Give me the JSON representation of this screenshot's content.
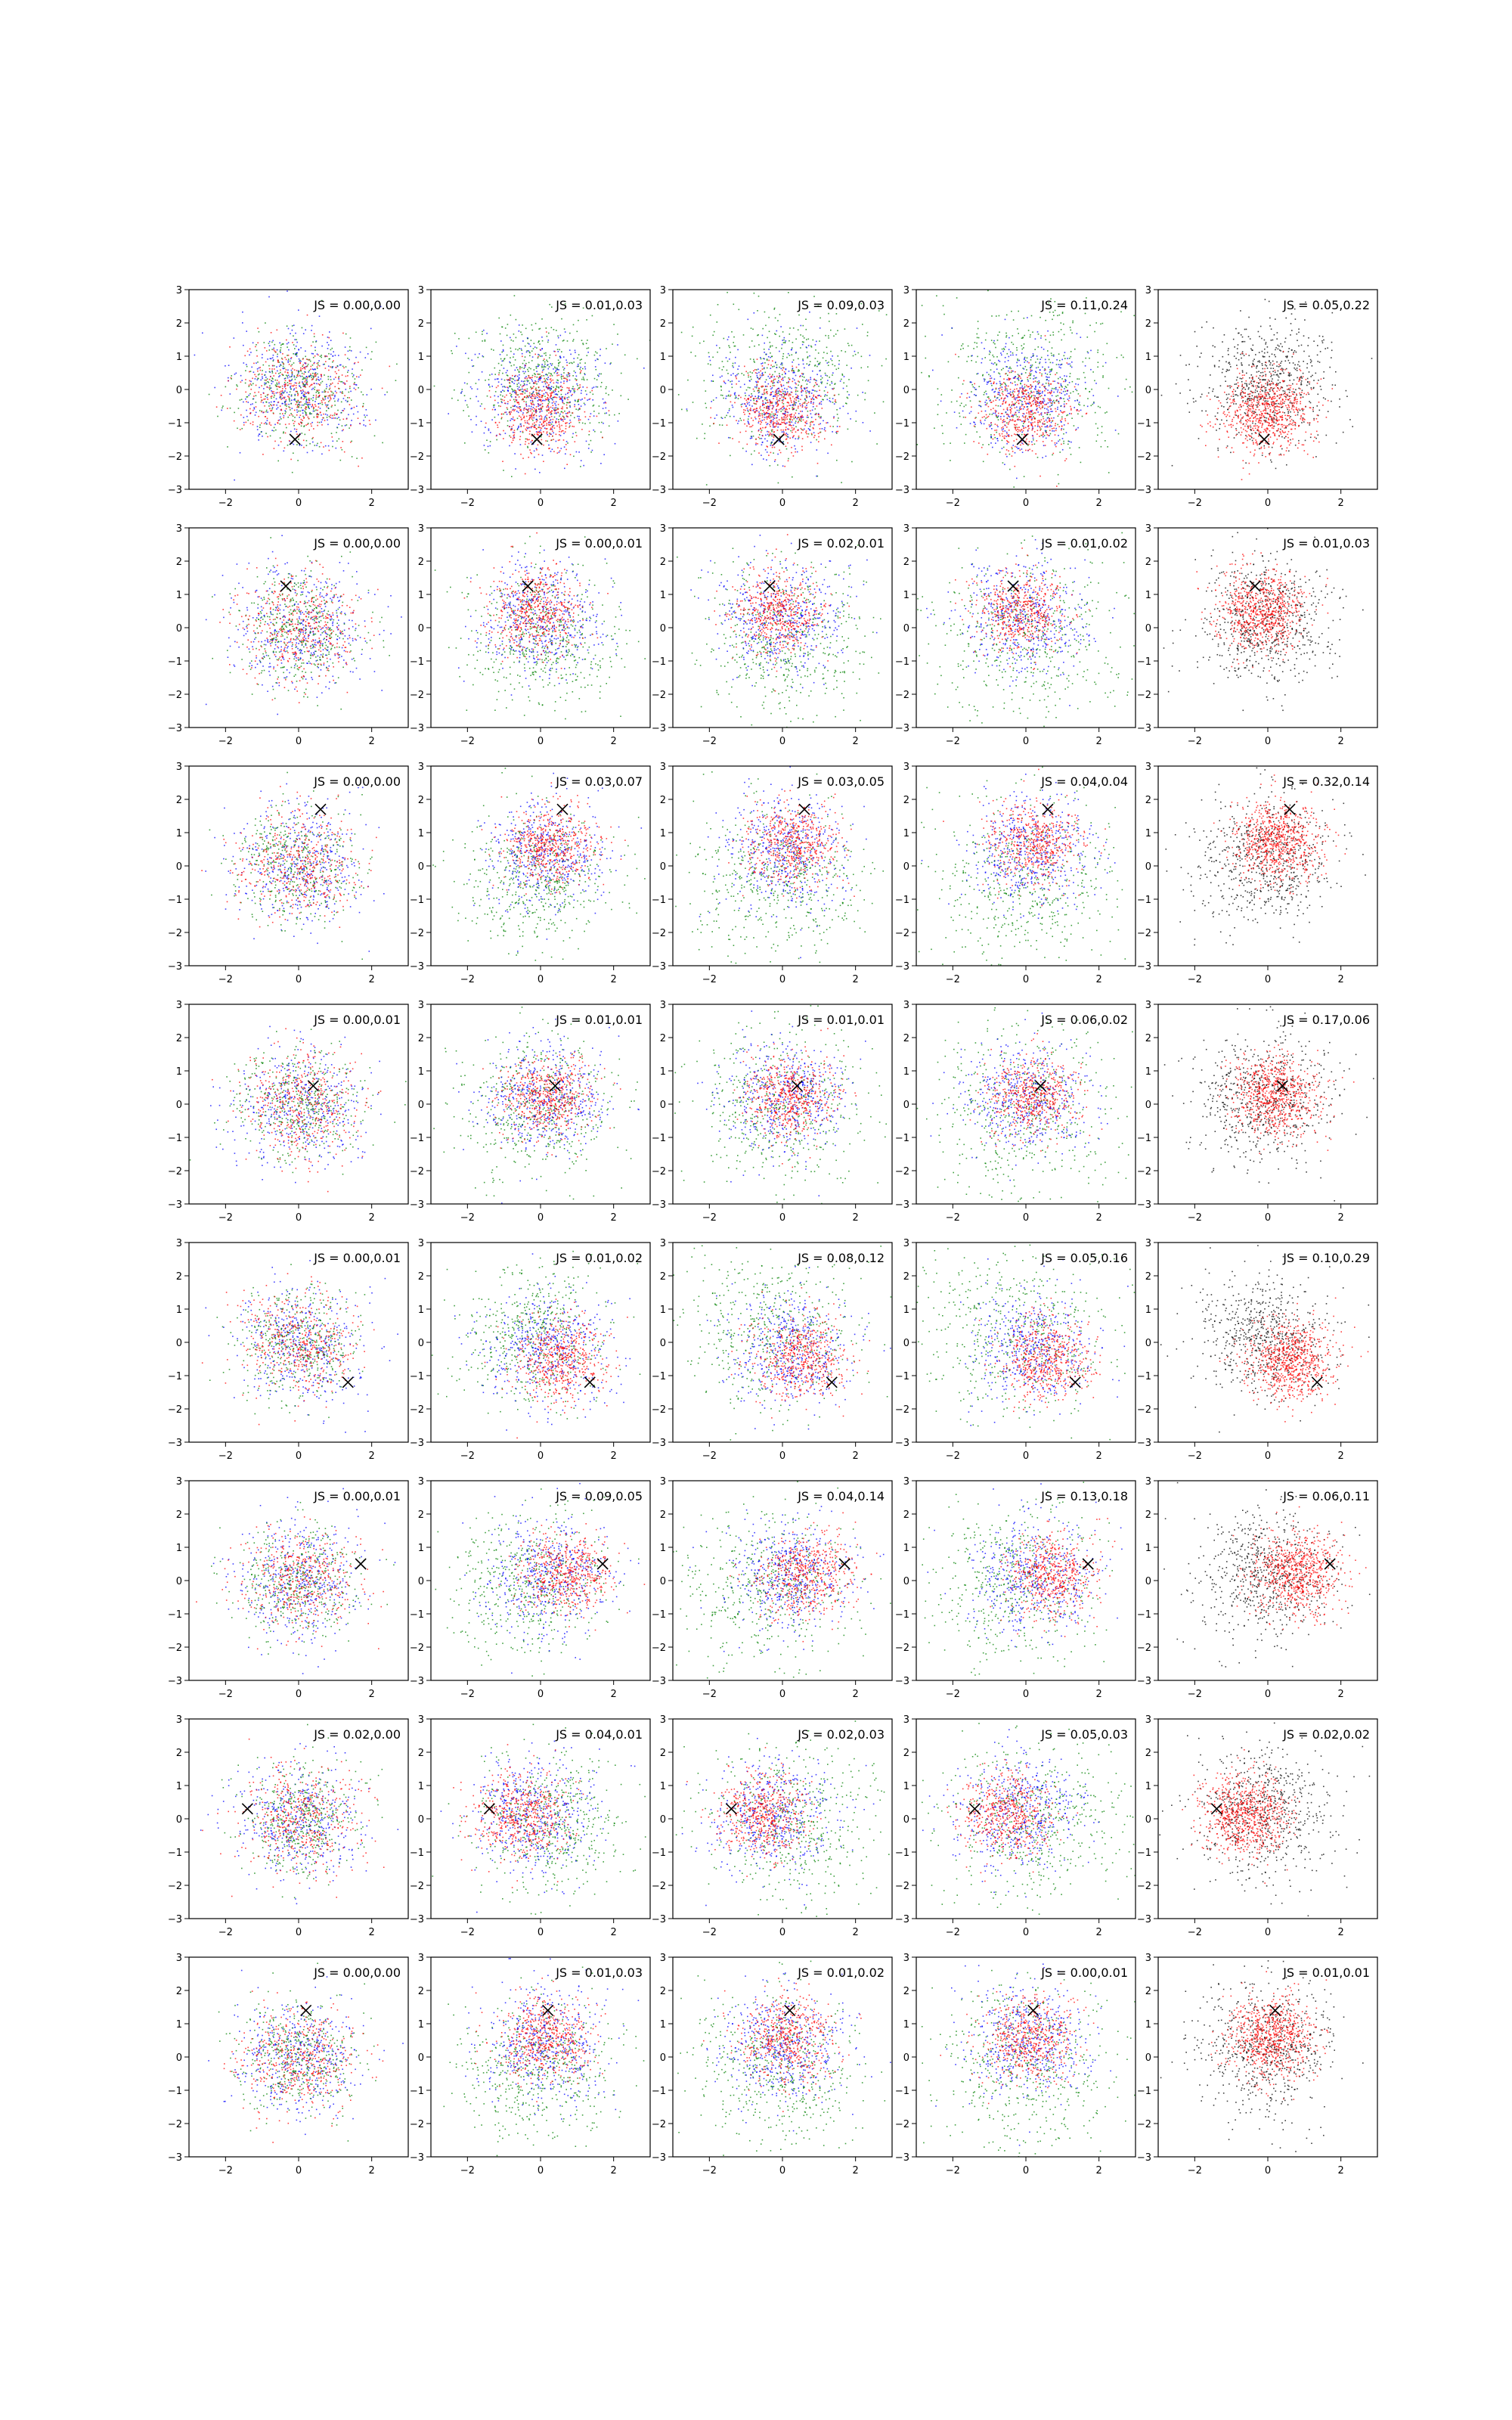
{
  "chart_data": {
    "type": "scatter",
    "layout": {
      "rows": 8,
      "cols": 5
    },
    "xlim": [
      -3,
      3
    ],
    "ylim": [
      -3,
      3
    ],
    "x_ticks": [
      -2,
      0,
      2
    ],
    "y_ticks": [
      -3,
      -2,
      -1,
      0,
      1,
      2,
      3
    ],
    "grid": false,
    "legend": "none",
    "colors": {
      "blue": "#0000ff",
      "green": "#008000",
      "red": "#ff0000",
      "black": "#000000",
      "marker": "#000000"
    },
    "rows": [
      {
        "marker": [
          -0.1,
          -1.5
        ],
        "js_labels": [
          "JS = 0.00,0.00",
          "JS = 0.01,0.03",
          "JS = 0.09,0.03",
          "JS = 0.11,0.24",
          "JS = 0.05,0.22"
        ]
      },
      {
        "marker": [
          -0.35,
          1.25
        ],
        "js_labels": [
          "JS = 0.00,0.00",
          "JS = 0.00,0.01",
          "JS = 0.02,0.01",
          "JS = 0.01,0.02",
          "JS = 0.01,0.03"
        ]
      },
      {
        "marker": [
          0.6,
          1.7
        ],
        "js_labels": [
          "JS = 0.00,0.00",
          "JS = 0.03,0.07",
          "JS = 0.03,0.05",
          "JS = 0.04,0.04",
          "JS = 0.32,0.14"
        ]
      },
      {
        "marker": [
          0.4,
          0.55
        ],
        "js_labels": [
          "JS = 0.00,0.01",
          "JS = 0.01,0.01",
          "JS = 0.01,0.01",
          "JS = 0.06,0.02",
          "JS = 0.17,0.06"
        ]
      },
      {
        "marker": [
          1.35,
          -1.2
        ],
        "js_labels": [
          "JS = 0.00,0.01",
          "JS = 0.01,0.02",
          "JS = 0.08,0.12",
          "JS = 0.05,0.16",
          "JS = 0.10,0.29"
        ]
      },
      {
        "marker": [
          1.7,
          0.5
        ],
        "js_labels": [
          "JS = 0.00,0.01",
          "JS = 0.09,0.05",
          "JS = 0.04,0.14",
          "JS = 0.13,0.18",
          "JS = 0.06,0.11"
        ]
      },
      {
        "marker": [
          -1.4,
          0.3
        ],
        "js_labels": [
          "JS = 0.02,0.00",
          "JS = 0.04,0.01",
          "JS = 0.02,0.03",
          "JS = 0.05,0.03",
          "JS = 0.02,0.02"
        ]
      },
      {
        "marker": [
          0.2,
          1.4
        ],
        "js_labels": [
          "JS = 0.00,0.00",
          "JS = 0.01,0.03",
          "JS = 0.01,0.02",
          "JS = 0.00,0.01",
          "JS = 0.01,0.01"
        ]
      }
    ]
  }
}
